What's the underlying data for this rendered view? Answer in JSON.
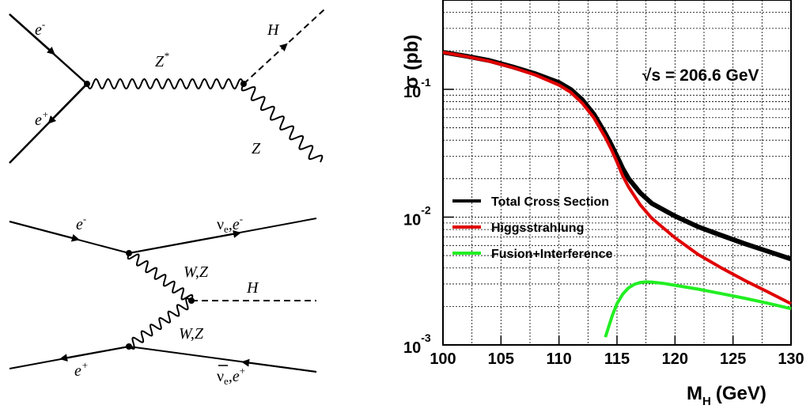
{
  "diagrams": {
    "top": {
      "e_minus": "e",
      "e_minus_sup": "-",
      "e_plus": "e",
      "e_plus_sup": "+",
      "z_star": "Z",
      "z_star_sup": "*",
      "higgs": "H",
      "z": "Z"
    },
    "bottom": {
      "e_minus": "e",
      "e_minus_sup": "-",
      "e_plus": "e",
      "e_plus_sup": "+",
      "nu_top": "ν",
      "nu_top_tail": "e,e",
      "nu_top_sub": "e",
      "nu_top_sup": "-",
      "wz_upper": "W,Z",
      "wz_lower": "W,Z",
      "higgs": "H",
      "nubar_bottom": "ν",
      "nubar_bottom_tail": "e,e",
      "nubar_bottom_sub": "e",
      "nubar_bottom_sup": "+"
    }
  },
  "chart_data": {
    "type": "line",
    "title": "",
    "xlabel": "M",
    "xlabel_sub": "H",
    "xlabel_unit": "(GeV)",
    "ylabel": "σ (pb)",
    "annotation": "√s = 206.6 GeV",
    "x_range": [
      100,
      130
    ],
    "y_range": [
      0.001,
      0.5
    ],
    "y_scale": "log",
    "grid": true,
    "x_ticks": [
      100,
      105,
      110,
      115,
      120,
      125,
      130
    ],
    "y_ticks": [
      {
        "value": 0.1,
        "base": "10",
        "exp": "-1"
      },
      {
        "value": 0.01,
        "base": "10",
        "exp": "-2"
      },
      {
        "value": 0.001,
        "base": "10",
        "exp": "-3"
      }
    ],
    "legend_position": "center-left",
    "series": [
      {
        "name": "Total Cross Section",
        "color": "#000000",
        "x": [
          100,
          102,
          104,
          106,
          108,
          110,
          111,
          112,
          113,
          114,
          114.5,
          115,
          115.5,
          116,
          117,
          118,
          120,
          122,
          124,
          126,
          128,
          130
        ],
        "y": [
          0.195,
          0.182,
          0.168,
          0.15,
          0.132,
          0.113,
          0.1,
          0.083,
          0.064,
          0.045,
          0.037,
          0.03,
          0.024,
          0.02,
          0.0155,
          0.0128,
          0.0102,
          0.0084,
          0.0072,
          0.0062,
          0.0054,
          0.0047
        ]
      },
      {
        "name": "Higgsstrahlung",
        "color": "#e00000",
        "x": [
          100,
          102,
          104,
          106,
          108,
          110,
          111,
          112,
          113,
          114,
          114.5,
          115,
          115.5,
          116,
          117,
          118,
          120,
          122,
          124,
          126,
          128,
          130
        ],
        "y": [
          0.195,
          0.181,
          0.166,
          0.148,
          0.129,
          0.108,
          0.095,
          0.078,
          0.06,
          0.042,
          0.034,
          0.027,
          0.021,
          0.0172,
          0.0125,
          0.0098,
          0.0069,
          0.0051,
          0.004,
          0.0032,
          0.0026,
          0.0021
        ]
      },
      {
        "name": "Fusion+Interference",
        "color": "#22ee22",
        "x": [
          114,
          114.3,
          114.6,
          115,
          115.5,
          116,
          116.5,
          117,
          117.5,
          118,
          119,
          120,
          122,
          124,
          126,
          128,
          130
        ],
        "y": [
          0.00115,
          0.0014,
          0.0017,
          0.0021,
          0.0025,
          0.0028,
          0.00298,
          0.00308,
          0.00311,
          0.0031,
          0.00303,
          0.00293,
          0.00273,
          0.00252,
          0.00232,
          0.00212,
          0.00192
        ]
      }
    ]
  }
}
